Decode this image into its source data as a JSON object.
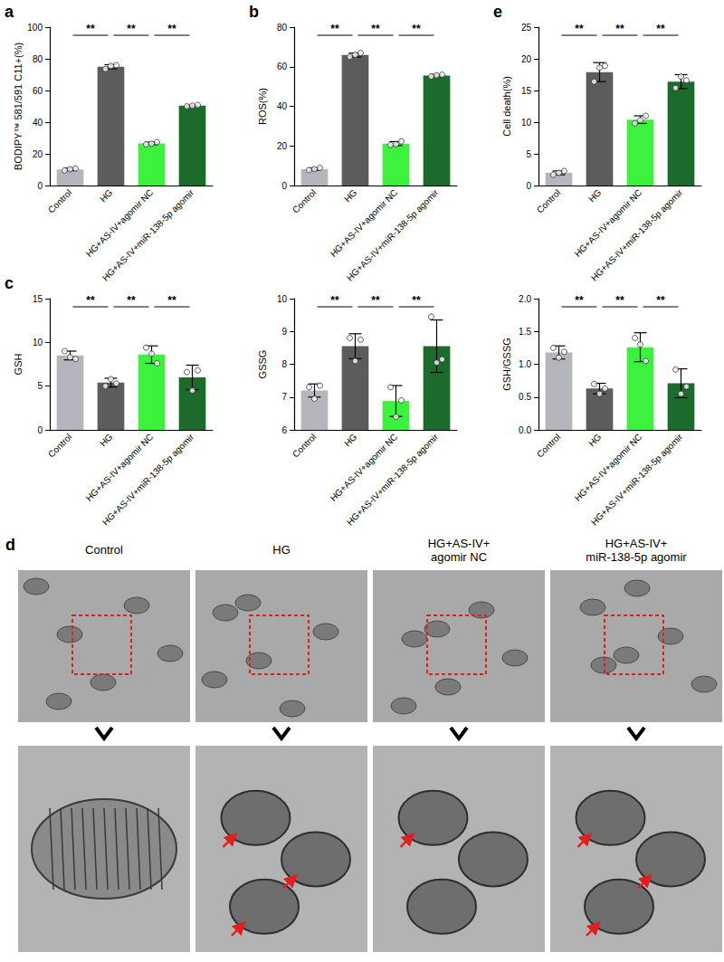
{
  "chart_data": [
    {
      "type": "bar",
      "panel": "a",
      "y_label": "BODIPY™ 581/591 C11+(%)",
      "categories": [
        "Control",
        "HG",
        "HG+AS-IV+agomir NC",
        "HG+AS-IV+miR-138-5p agomir"
      ],
      "values": [
        10.2,
        75.0,
        26.6,
        50.4
      ],
      "errors": [
        0.8,
        1.3,
        0.8,
        0.4
      ],
      "points": [
        [
          9.5,
          10.3,
          10.8
        ],
        [
          73.6,
          75.5,
          76.0
        ],
        [
          26.0,
          26.4,
          27.4
        ],
        [
          50.0,
          50.4,
          50.8
        ]
      ],
      "colors": [
        "#b5b5bd",
        "#5c5c5c",
        "#3cf23c",
        "#1d6b2c"
      ],
      "ylim": [
        0,
        100
      ],
      "yticks": [
        0,
        20,
        40,
        60,
        80,
        100
      ],
      "grid": false,
      "annotations": [
        {
          "from": "Control",
          "to": "HG",
          "text": "**"
        },
        {
          "from": "HG",
          "to": "HG+AS-IV+agomir NC",
          "text": "**"
        },
        {
          "from": "HG+AS-IV+agomir NC",
          "to": "HG+AS-IV+miR-138-5p agomir",
          "text": "**"
        }
      ]
    },
    {
      "type": "bar",
      "panel": "b",
      "y_label": "ROS(%)",
      "categories": [
        "Control",
        "HG",
        "HG+AS-IV+agomir NC",
        "HG+AS-IV+miR-138-5p agomir"
      ],
      "values": [
        8.3,
        65.9,
        21.2,
        55.6
      ],
      "errors": [
        0.6,
        1.0,
        1.0,
        0.5
      ],
      "points": [
        [
          7.8,
          8.3,
          8.9
        ],
        [
          65.0,
          66.0,
          67.0
        ],
        [
          20.5,
          20.8,
          22.3
        ],
        [
          55.1,
          55.7,
          56.0
        ]
      ],
      "colors": [
        "#b5b5bd",
        "#5c5c5c",
        "#3cf23c",
        "#1d6b2c"
      ],
      "ylim": [
        0,
        80
      ],
      "yticks": [
        0,
        20,
        40,
        60,
        80
      ],
      "grid": false,
      "annotations": [
        {
          "from": "Control",
          "to": "HG",
          "text": "**"
        },
        {
          "from": "HG",
          "to": "HG+AS-IV+agomir NC",
          "text": "**"
        },
        {
          "from": "HG+AS-IV+agomir NC",
          "to": "HG+AS-IV+miR-138-5p agomir",
          "text": "**"
        }
      ]
    },
    {
      "type": "bar",
      "panel": "e",
      "y_label": "Cell death(%)",
      "categories": [
        "Control",
        "HG",
        "HG+AS-IV+agomir NC",
        "HG+AS-IV+miR-138-5p agomir"
      ],
      "values": [
        2.0,
        17.9,
        10.4,
        16.4
      ],
      "errors": [
        0.3,
        1.5,
        0.6,
        1.1
      ],
      "points": [
        [
          1.7,
          2.0,
          2.3
        ],
        [
          16.4,
          18.6,
          18.9
        ],
        [
          9.8,
          10.3,
          11.0
        ],
        [
          15.4,
          17.2,
          16.6
        ]
      ],
      "colors": [
        "#b5b5bd",
        "#5c5c5c",
        "#3cf23c",
        "#1d6b2c"
      ],
      "ylim": [
        0,
        25
      ],
      "yticks": [
        0,
        5,
        10,
        15,
        20,
        25
      ],
      "grid": false,
      "annotations": [
        {
          "from": "Control",
          "to": "HG",
          "text": "**"
        },
        {
          "from": "HG",
          "to": "HG+AS-IV+agomir NC",
          "text": "**"
        },
        {
          "from": "HG+AS-IV+agomir NC",
          "to": "HG+AS-IV+miR-138-5p agomir",
          "text": "**"
        }
      ]
    },
    {
      "type": "bar",
      "panel": "c",
      "y_label": "GSH",
      "categories": [
        "Control",
        "HG",
        "HG+AS-IV+agomir NC",
        "HG+AS-IV+miR-138-5p agomir"
      ],
      "values": [
        8.5,
        5.4,
        8.6,
        6.0
      ],
      "errors": [
        0.5,
        0.5,
        1.0,
        1.4
      ],
      "points": [
        [
          9.0,
          8.3,
          8.1
        ],
        [
          5.0,
          5.8,
          5.3
        ],
        [
          9.4,
          8.7,
          7.6
        ],
        [
          6.6,
          4.5,
          6.8
        ]
      ],
      "colors": [
        "#b5b5bd",
        "#5c5c5c",
        "#3cf23c",
        "#1d6b2c"
      ],
      "ylim": [
        0,
        15
      ],
      "yticks": [
        0,
        5,
        10,
        15
      ],
      "grid": false,
      "annotations": [
        {
          "from": "Control",
          "to": "HG",
          "text": "**"
        },
        {
          "from": "HG",
          "to": "HG+AS-IV+agomir NC",
          "text": "**"
        },
        {
          "from": "HG+AS-IV+agomir NC",
          "to": "HG+AS-IV+miR-138-5p agomir",
          "text": "**"
        }
      ]
    },
    {
      "type": "bar",
      "y_label": "GSSG",
      "categories": [
        "Control",
        "HG",
        "HG+AS-IV+agomir NC",
        "HG+AS-IV+miR-138-5p agomir"
      ],
      "values": [
        7.2,
        8.55,
        6.88,
        8.55
      ],
      "errors": [
        0.2,
        0.38,
        0.47,
        0.8
      ],
      "points": [
        [
          7.3,
          6.95,
          7.35
        ],
        [
          8.8,
          8.1,
          8.75
        ],
        [
          7.3,
          6.4,
          6.9
        ],
        [
          9.45,
          8.05,
          8.15
        ]
      ],
      "colors": [
        "#b5b5bd",
        "#5c5c5c",
        "#3cf23c",
        "#1d6b2c"
      ],
      "ylim": [
        6,
        10
      ],
      "yticks": [
        6,
        7,
        8,
        9,
        10
      ],
      "grid": false,
      "annotations": [
        {
          "from": "Control",
          "to": "HG",
          "text": "**"
        },
        {
          "from": "HG",
          "to": "HG+AS-IV+agomir NC",
          "text": "**"
        },
        {
          "from": "HG+AS-IV+agomir NC",
          "to": "HG+AS-IV+miR-138-5p agomir",
          "text": "**"
        }
      ]
    },
    {
      "type": "bar",
      "y_label": "GSH/GSSG",
      "categories": [
        "Control",
        "HG",
        "HG+AS-IV+agomir NC",
        "HG+AS-IV+miR-138-5p agomir"
      ],
      "values": [
        1.18,
        0.63,
        1.26,
        0.71
      ],
      "errors": [
        0.1,
        0.08,
        0.22,
        0.22
      ],
      "points": [
        [
          1.25,
          1.1,
          1.19
        ],
        [
          0.7,
          0.55,
          0.63
        ],
        [
          1.4,
          1.3,
          1.05
        ],
        [
          0.92,
          0.55,
          0.66
        ]
      ],
      "colors": [
        "#b5b5bd",
        "#5c5c5c",
        "#3cf23c",
        "#1d6b2c"
      ],
      "ylim": [
        0,
        2
      ],
      "yticks": [
        {
          "value": 0,
          "label": "0.0"
        },
        {
          "value": 0.5,
          "label": "0.5"
        },
        {
          "value": 1,
          "label": "1.0"
        },
        {
          "value": 1.5,
          "label": "1.5"
        },
        {
          "value": 2,
          "label": "2.0"
        }
      ],
      "grid": false,
      "annotations": [
        {
          "from": "Control",
          "to": "HG",
          "text": "**"
        },
        {
          "from": "HG",
          "to": "HG+AS-IV+agomir NC",
          "text": "**"
        },
        {
          "from": "HG+AS-IV+agomir NC",
          "to": "HG+AS-IV+miR-138-5p agomir",
          "text": "**"
        }
      ]
    }
  ],
  "figure_d": {
    "panel": "d",
    "images": [
      {
        "title": [
          "Control"
        ]
      },
      {
        "title": [
          "HG"
        ]
      },
      {
        "title": [
          "HG+AS-IV+",
          "agomir NC"
        ]
      },
      {
        "title": [
          "HG+AS-IV+",
          "miR-138-5p agomir"
        ]
      }
    ]
  }
}
